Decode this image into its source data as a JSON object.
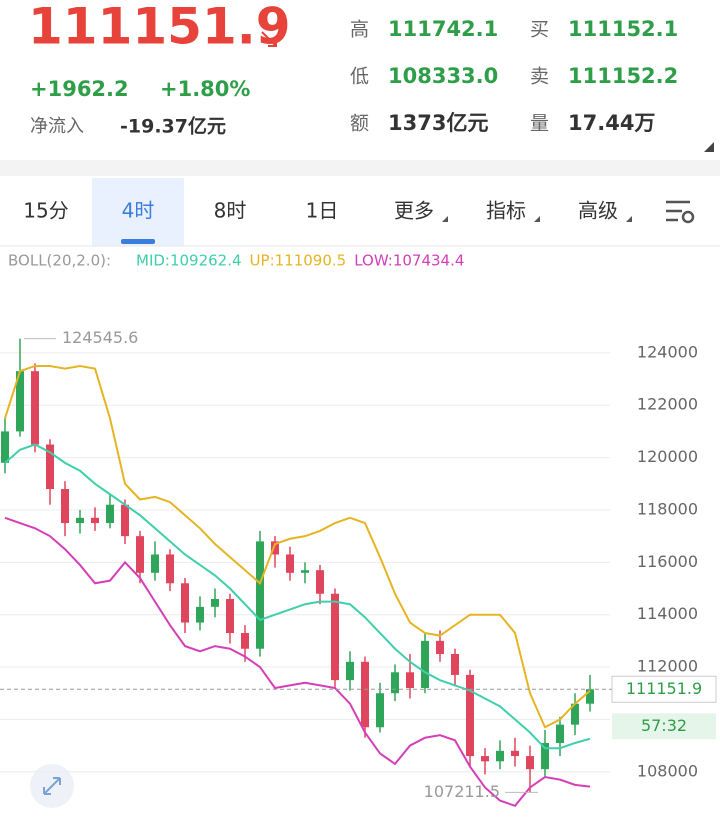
{
  "header": {
    "price": "111151.9",
    "change": "+1962.2",
    "change_pct": "+1.80%",
    "net_inflow_label": "净流入",
    "net_inflow": "-19.37亿元",
    "stats": [
      {
        "label": "高",
        "value": "111742.1",
        "color": "#2e9e48"
      },
      {
        "label": "买",
        "value": "111152.1",
        "color": "#2e9e48"
      },
      {
        "label": "低",
        "value": "108333.0",
        "color": "#2e9e48"
      },
      {
        "label": "卖",
        "value": "111152.2",
        "color": "#2e9e48"
      },
      {
        "label": "额",
        "value": "1373亿元",
        "color": "#333333"
      },
      {
        "label": "量",
        "value": "17.44万",
        "color": "#333333"
      }
    ]
  },
  "tabs": [
    "15分",
    "4时",
    "8时",
    "1日",
    "更多",
    "指标",
    "高级"
  ],
  "selected_tab": 1,
  "chart_data": {
    "type": "candlestick",
    "indicator": "BOLL(20,2.0):",
    "ylim": [
      105700,
      127700
    ],
    "yticks": [
      108000,
      110000,
      112000,
      114000,
      116000,
      118000,
      120000,
      122000,
      124000
    ],
    "tick_labels_shown": [
      108000,
      112000,
      114000,
      116000,
      118000,
      120000,
      122000,
      124000
    ],
    "grid": true,
    "up_color": "#2fa55a",
    "down_color": "#e0455e",
    "open": [
      119800,
      121000,
      123300,
      120500,
      118800,
      117500,
      117700,
      117500,
      118200,
      117000,
      115600,
      116300,
      115200,
      113700,
      114300,
      114600,
      113300,
      112700,
      116800,
      116300,
      115600,
      115700,
      114800,
      111500,
      112200,
      109700,
      111000,
      111800,
      111200,
      113000,
      112500,
      111700,
      108600,
      108400,
      108800,
      108600,
      108100,
      109100,
      109800,
      110600
    ],
    "high": [
      121500,
      124545.6,
      123600,
      120700,
      119100,
      118000,
      118100,
      118600,
      118400,
      117200,
      116800,
      116500,
      115400,
      114700,
      115000,
      114800,
      113600,
      117200,
      117000,
      116600,
      116000,
      115900,
      115000,
      112600,
      112400,
      111400,
      112100,
      112500,
      113300,
      113400,
      112700,
      111900,
      108900,
      109200,
      109300,
      109000,
      109600,
      110100,
      111000,
      111700
    ],
    "low": [
      119400,
      120800,
      120200,
      118200,
      117000,
      117100,
      117200,
      117300,
      116700,
      115200,
      115300,
      114900,
      113300,
      113400,
      113900,
      112900,
      112200,
      112400,
      115800,
      115300,
      115200,
      114400,
      111200,
      111100,
      109300,
      109500,
      110700,
      110800,
      111000,
      112200,
      111300,
      108200,
      107900,
      108100,
      108200,
      107211.5,
      107800,
      108600,
      109400,
      110300
    ],
    "close": [
      121000,
      123300,
      120500,
      118800,
      117500,
      117700,
      117500,
      118200,
      117000,
      115600,
      116300,
      115200,
      113700,
      114300,
      114600,
      113300,
      112700,
      116800,
      116300,
      115600,
      115700,
      114800,
      111500,
      112200,
      109700,
      111000,
      111800,
      111200,
      113000,
      112500,
      111700,
      108600,
      108400,
      108800,
      108600,
      108100,
      109100,
      109800,
      110600,
      111151.9
    ],
    "series": [
      {
        "name": "MID:109262.4",
        "color": "#3fcfaa",
        "values": [
          119800,
          120300,
          120500,
          120200,
          119800,
          119500,
          119000,
          118600,
          118200,
          117800,
          117300,
          116800,
          116300,
          115900,
          115500,
          115000,
          114400,
          113800,
          114000,
          114200,
          114400,
          114500,
          114500,
          114400,
          113900,
          113300,
          112700,
          112200,
          111800,
          111500,
          111300,
          111100,
          110800,
          110500,
          110000,
          109500,
          108900,
          108900,
          109100,
          109262.4
        ]
      },
      {
        "name": "UP:111090.5",
        "color": "#e6b422",
        "values": [
          121500,
          123300,
          123500,
          123500,
          123400,
          123500,
          123400,
          121500,
          119000,
          118400,
          118500,
          118300,
          117800,
          117300,
          116700,
          116200,
          115700,
          115200,
          116700,
          116900,
          117000,
          117200,
          117500,
          117700,
          117500,
          116200,
          114800,
          113700,
          113300,
          113200,
          113600,
          114000,
          114000,
          114000,
          113300,
          111000,
          109700,
          110000,
          110600,
          111090.5
        ]
      },
      {
        "name": "LOW:107434.4",
        "color": "#d43fb8",
        "values": [
          117700,
          117500,
          117300,
          117000,
          116500,
          115900,
          115200,
          115300,
          116000,
          115400,
          114500,
          113600,
          112800,
          112600,
          112800,
          112700,
          112400,
          112000,
          111200,
          111300,
          111400,
          111300,
          111200,
          110600,
          109500,
          108700,
          108300,
          109000,
          109300,
          109400,
          109200,
          108200,
          107400,
          106900,
          106700,
          107400,
          107800,
          107700,
          107500,
          107434.4
        ]
      }
    ],
    "max_label": 124545.6,
    "min_label": 107211.5,
    "last_price": 111151.9,
    "countdown": "57:32"
  }
}
